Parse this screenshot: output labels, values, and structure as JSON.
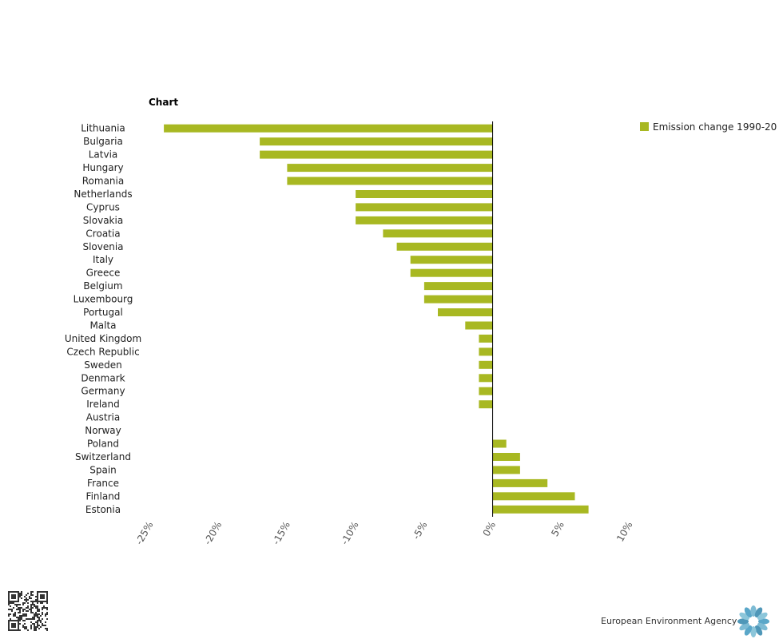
{
  "chart_data": {
    "type": "bar",
    "orientation": "horizontal",
    "title": "Chart",
    "categories": [
      "Lithuania",
      "Bulgaria",
      "Latvia",
      "Hungary",
      "Romania",
      "Netherlands",
      "Cyprus",
      "Slovakia",
      "Croatia",
      "Slovenia",
      "Italy",
      "Greece",
      "Belgium",
      "Luxembourg",
      "Portugal",
      "Malta",
      "United Kingdom",
      "Czech Republic",
      "Sweden",
      "Denmark",
      "Germany",
      "Ireland",
      "Austria",
      "Norway",
      "Poland",
      "Switzerland",
      "Spain",
      "France",
      "Finland",
      "Estonia"
    ],
    "series": [
      {
        "name": "Emission change 1990-20",
        "color": "#a8b822",
        "values": [
          -24,
          -17,
          -17,
          -15,
          -15,
          -10,
          -10,
          -10,
          -8,
          -7,
          -6,
          -6,
          -5,
          -5,
          -4,
          -2,
          -1,
          -1,
          -1,
          -1,
          -1,
          -1,
          0,
          0,
          1,
          2,
          2,
          4,
          6,
          7
        ]
      }
    ],
    "xlim": [
      -25,
      10
    ],
    "xticks": [
      -25,
      -20,
      -15,
      -10,
      -5,
      0,
      5,
      10
    ],
    "xtick_labels": [
      "-25%",
      "-20%",
      "-15%",
      "-10%",
      "-5%",
      "0%",
      "5%",
      "10%"
    ],
    "grid": false,
    "legend_position": "top-right"
  },
  "footer": {
    "brand": "European Environment Agency"
  },
  "icons": {
    "qr": "qr-code-icon",
    "logo": "eea-logo-icon"
  }
}
